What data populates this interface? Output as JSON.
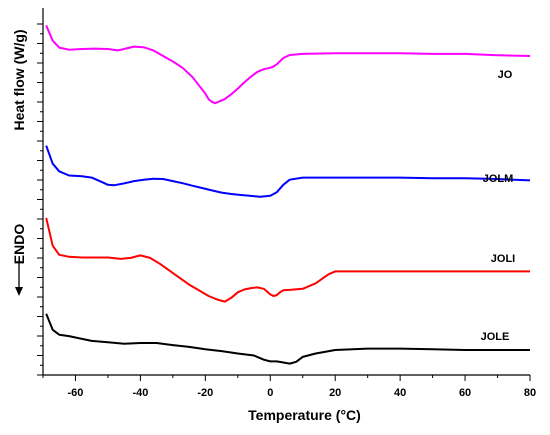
{
  "chart_data": {
    "type": "line",
    "xlabel": "Temperature (°C)",
    "ylabel": "Heat flow (W/g)",
    "y_side_annotation": "ENDO",
    "xlim": [
      -70,
      80
    ],
    "xticks": [
      -60,
      -40,
      -20,
      0,
      20,
      40,
      60,
      80
    ],
    "y_numeric_labels": false,
    "grid": false,
    "series": [
      {
        "name": "JO",
        "color": "#ff00ff",
        "x": [
          -69,
          -67,
          -65,
          -62,
          -58,
          -54,
          -50,
          -47,
          -45,
          -42,
          -39,
          -36,
          -33,
          -30,
          -27,
          -24,
          -22,
          -20,
          -19,
          -18,
          -17,
          -16,
          -14,
          -12,
          -10,
          -8,
          -6,
          -4,
          -2,
          0,
          1,
          2,
          4,
          6,
          10,
          20,
          30,
          40,
          50,
          60,
          70,
          80
        ],
        "y": [
          -1.25,
          -2.35,
          -2.85,
          -3.0,
          -2.95,
          -2.92,
          -2.95,
          -3.05,
          -2.95,
          -2.78,
          -2.82,
          -3.05,
          -3.45,
          -3.85,
          -4.3,
          -4.95,
          -5.55,
          -6.15,
          -6.55,
          -6.75,
          -6.85,
          -6.75,
          -6.55,
          -6.2,
          -5.8,
          -5.35,
          -4.95,
          -4.6,
          -4.4,
          -4.3,
          -4.2,
          -4.05,
          -3.6,
          -3.38,
          -3.3,
          -3.25,
          -3.25,
          -3.25,
          -3.3,
          -3.3,
          -3.4,
          -3.45
        ]
      },
      {
        "name": "JOLM",
        "color": "#0000ff",
        "x": [
          -69,
          -67,
          -65,
          -62,
          -58,
          -55,
          -52,
          -50,
          -48,
          -45,
          -42,
          -39,
          -36,
          -33,
          -30,
          -27,
          -24,
          -21,
          -18,
          -15,
          -12,
          -9,
          -6,
          -3,
          0,
          2,
          4,
          6,
          10,
          20,
          30,
          40,
          50,
          60,
          70,
          80
        ],
        "y": [
          -9.9,
          -11.2,
          -11.75,
          -12.05,
          -12.1,
          -12.2,
          -12.5,
          -12.72,
          -12.75,
          -12.62,
          -12.45,
          -12.35,
          -12.28,
          -12.3,
          -12.45,
          -12.6,
          -12.78,
          -12.95,
          -13.12,
          -13.28,
          -13.38,
          -13.45,
          -13.52,
          -13.58,
          -13.5,
          -13.25,
          -12.72,
          -12.35,
          -12.2,
          -12.2,
          -12.2,
          -12.2,
          -12.25,
          -12.25,
          -12.3,
          -12.4
        ]
      },
      {
        "name": "JOLI",
        "color": "#ff0000",
        "x": [
          -69,
          -67,
          -65,
          -62,
          -58,
          -55,
          -50,
          -46,
          -43,
          -40,
          -37,
          -34,
          -31,
          -28,
          -25,
          -22,
          -19,
          -16,
          -14,
          -12,
          -10,
          -8,
          -6,
          -4,
          -2,
          0,
          1,
          2,
          3,
          4,
          6,
          10,
          14,
          18,
          20,
          30,
          40,
          50,
          60,
          70,
          80
        ],
        "y": [
          -15.1,
          -17.1,
          -17.75,
          -17.9,
          -17.95,
          -17.95,
          -17.95,
          -18.05,
          -17.98,
          -17.8,
          -17.98,
          -18.4,
          -18.9,
          -19.4,
          -19.9,
          -20.3,
          -20.72,
          -21.0,
          -21.12,
          -20.85,
          -20.45,
          -20.25,
          -20.15,
          -20.1,
          -20.2,
          -20.6,
          -20.72,
          -20.65,
          -20.45,
          -20.3,
          -20.28,
          -20.2,
          -19.8,
          -19.15,
          -18.95,
          -18.95,
          -18.95,
          -18.95,
          -18.95,
          -18.95,
          -18.95
        ]
      },
      {
        "name": "JOLE",
        "color": "#000000",
        "x": [
          -69,
          -67,
          -65,
          -62,
          -58,
          -55,
          -50,
          -45,
          -40,
          -35,
          -30,
          -25,
          -20,
          -15,
          -10,
          -5,
          -2,
          0,
          2,
          4,
          6,
          8,
          10,
          14,
          20,
          30,
          40,
          50,
          60,
          70,
          80
        ],
        "y": [
          -22.0,
          -23.15,
          -23.5,
          -23.6,
          -23.8,
          -23.95,
          -24.05,
          -24.15,
          -24.1,
          -24.1,
          -24.25,
          -24.38,
          -24.55,
          -24.68,
          -24.85,
          -25.0,
          -25.3,
          -25.42,
          -25.42,
          -25.5,
          -25.58,
          -25.45,
          -25.1,
          -24.85,
          -24.6,
          -24.5,
          -24.5,
          -24.55,
          -24.6,
          -24.6,
          -24.6
        ]
      }
    ],
    "series_label_positions": "right, above each curve"
  }
}
